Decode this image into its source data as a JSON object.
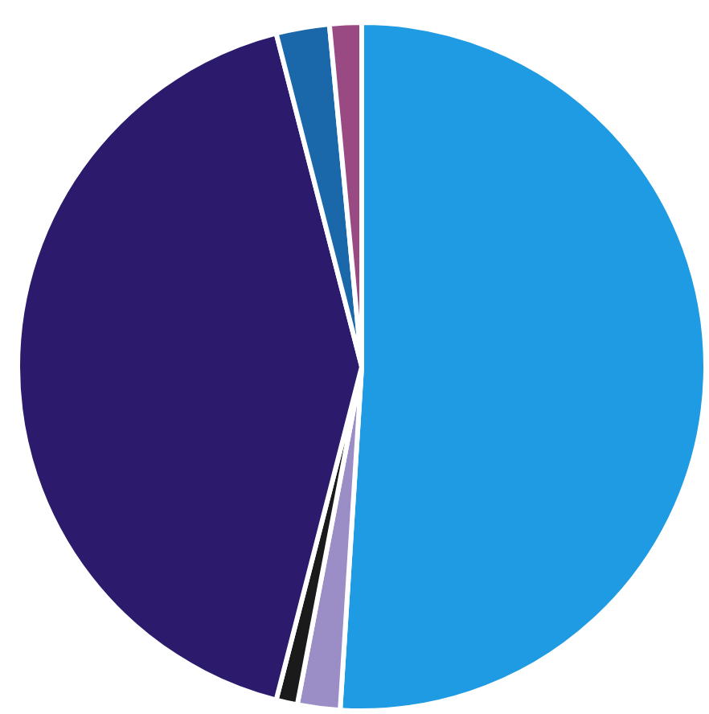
{
  "chart_data": {
    "type": "pie",
    "categories": [
      null,
      null,
      null,
      null,
      null,
      null
    ],
    "values": [
      51,
      2,
      1,
      42,
      2.5,
      1.5
    ],
    "colors": [
      "#1e9be2",
      "#9b8ec6",
      "#1a1a1a",
      "#2c1a6c",
      "#1a68aa",
      "#9a4a82"
    ]
  }
}
